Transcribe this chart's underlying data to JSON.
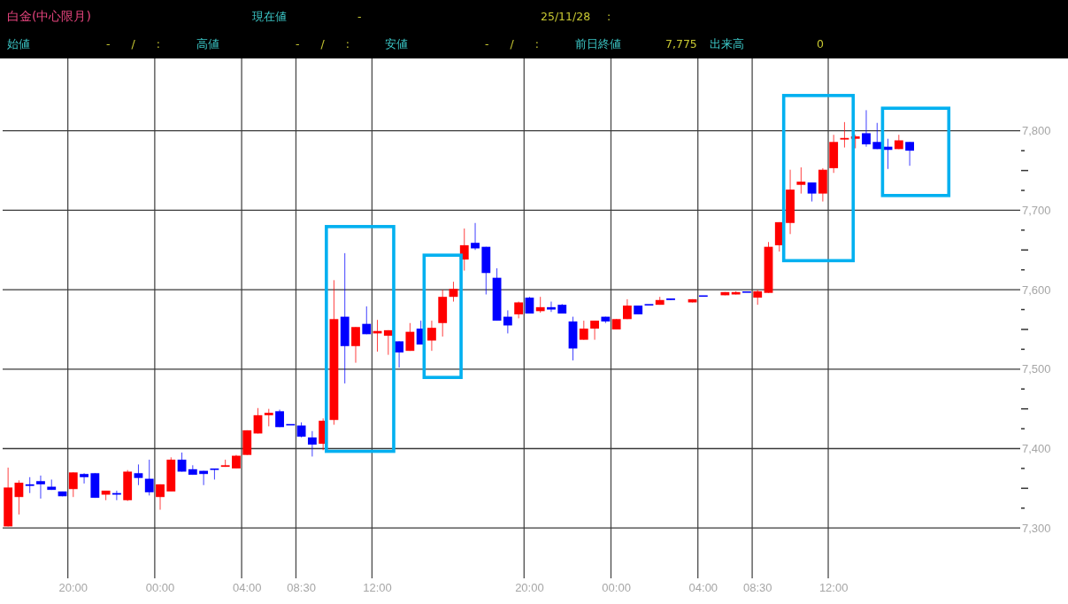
{
  "chart_data": {
    "type": "candlestick",
    "title": "白金(中心限月)",
    "annotations": [
      "現在値",
      "-",
      "25/11/28",
      ":",
      "始値",
      "- / :",
      "高値",
      "- / :",
      "安値",
      "- / :",
      "前日終値",
      "7,775",
      "出来高",
      "0"
    ],
    "categories": [
      null,
      null,
      null,
      null,
      null,
      null,
      "20:00",
      null,
      null,
      null,
      null,
      null,
      null,
      null,
      "00:00",
      null,
      null,
      null,
      null,
      null,
      null,
      null,
      "04:00",
      null,
      null,
      null,
      null,
      "08:30",
      null,
      null,
      null,
      null,
      null,
      null,
      "12:00",
      null,
      null,
      null,
      null,
      null,
      null,
      null,
      null,
      null,
      null,
      null,
      null,
      null,
      "20:00",
      null,
      null,
      null,
      null,
      null,
      null,
      null,
      "00:00",
      null,
      null,
      null,
      null,
      null,
      null,
      null,
      "04:00",
      null,
      null,
      null,
      null,
      "08:30",
      null,
      null,
      null,
      null,
      null,
      null,
      "12:00",
      null,
      null,
      null,
      null,
      null,
      null,
      null,
      null,
      null,
      null,
      null,
      null,
      null,
      null,
      null,
      null,
      null
    ],
    "ohlc": [
      [
        7302,
        7376,
        7302,
        7351
      ],
      [
        7339,
        7360,
        7317,
        7357
      ],
      [
        7355,
        7364,
        7344,
        7353
      ],
      [
        7359,
        7366,
        7337,
        7355
      ],
      [
        7352,
        7361,
        7348,
        7348
      ],
      [
        7346,
        7346,
        7340,
        7340
      ],
      [
        7349,
        7370,
        7339,
        7370
      ],
      [
        7368,
        7369,
        7356,
        7364
      ],
      [
        7369,
        7369,
        7338,
        7338
      ],
      [
        7342,
        7347,
        7335,
        7347
      ],
      [
        7344,
        7347,
        7335,
        7342
      ],
      [
        7335,
        7373,
        7334,
        7371
      ],
      [
        7369,
        7380,
        7354,
        7363
      ],
      [
        7362,
        7386,
        7341,
        7345
      ],
      [
        7339,
        7355,
        7323,
        7355
      ],
      [
        7346,
        7389,
        7346,
        7386
      ],
      [
        7386,
        7395,
        7371,
        7371
      ],
      [
        7374,
        7379,
        7367,
        7367
      ],
      [
        7372,
        7372,
        7354,
        7368
      ],
      [
        7374,
        7374,
        7361,
        7373
      ],
      [
        7377,
        7386,
        7377,
        7379
      ],
      [
        7375,
        7392,
        7375,
        7391
      ],
      [
        7392,
        7423,
        7392,
        7423
      ],
      [
        7419,
        7451,
        7419,
        7442
      ],
      [
        7442,
        7450,
        7428,
        7445
      ],
      [
        7447,
        7449,
        7427,
        7427
      ],
      [
        7430,
        7430,
        7430,
        7430
      ],
      [
        7429,
        7433,
        7414,
        7415
      ],
      [
        7414,
        7422,
        7390,
        7405
      ],
      [
        7406,
        7438,
        7398,
        7435
      ],
      [
        7436,
        7612,
        7430,
        7563
      ],
      [
        7566,
        7646,
        7482,
        7529
      ],
      [
        7529,
        7553,
        7508,
        7553
      ],
      [
        7557,
        7579,
        7544,
        7544
      ],
      [
        7545,
        7562,
        7522,
        7548
      ],
      [
        7542,
        7549,
        7518,
        7549
      ],
      [
        7535,
        7535,
        7502,
        7521
      ],
      [
        7523,
        7558,
        7523,
        7547
      ],
      [
        7551,
        7561,
        7531,
        7531
      ],
      [
        7536,
        7561,
        7523,
        7552
      ],
      [
        7558,
        7600,
        7541,
        7591
      ],
      [
        7591,
        7610,
        7585,
        7601
      ],
      [
        7638,
        7677,
        7624,
        7656
      ],
      [
        7659,
        7684,
        7650,
        7652
      ],
      [
        7654,
        7654,
        7594,
        7621
      ],
      [
        7615,
        7627,
        7561,
        7561
      ],
      [
        7566,
        7574,
        7545,
        7555
      ],
      [
        7569,
        7585,
        7564,
        7584
      ],
      [
        7590,
        7591,
        7570,
        7570
      ],
      [
        7573,
        7591,
        7571,
        7578
      ],
      [
        7578,
        7585,
        7572,
        7575
      ],
      [
        7581,
        7582,
        7570,
        7570
      ],
      [
        7560,
        7566,
        7511,
        7526
      ],
      [
        7537,
        7561,
        7537,
        7551
      ],
      [
        7551,
        7561,
        7537,
        7561
      ],
      [
        7566,
        7566,
        7558,
        7560
      ],
      [
        7550,
        7563,
        7550,
        7563
      ],
      [
        7563,
        7588,
        7563,
        7580
      ],
      [
        7580,
        7580,
        7569,
        7569
      ],
      [
        7581,
        7581,
        7581,
        7581
      ],
      [
        7581,
        7591,
        7581,
        7587
      ],
      [
        7589,
        7589,
        7587,
        7587
      ],
      null,
      [
        7584,
        7588,
        7584,
        7588
      ],
      [
        7592,
        7592,
        7592,
        7592
      ],
      null,
      [
        7593,
        7597,
        7593,
        7597
      ],
      [
        7594,
        7598,
        7594,
        7597
      ],
      [
        7597,
        7597,
        7597,
        7597
      ],
      [
        7590,
        7600,
        7581,
        7598
      ],
      [
        7596,
        7660,
        7596,
        7654
      ],
      [
        7656,
        7685,
        7648,
        7685
      ],
      [
        7684,
        7751,
        7670,
        7726
      ],
      [
        7732,
        7754,
        7721,
        7736
      ],
      [
        7735,
        7735,
        7711,
        7721
      ],
      [
        7721,
        7753,
        7711,
        7751
      ],
      [
        7753,
        7795,
        7747,
        7786
      ],
      [
        7789,
        7811,
        7779,
        7791
      ],
      [
        7790,
        7795,
        7778,
        7793
      ],
      [
        7797,
        7826,
        7780,
        7783
      ],
      [
        7786,
        7810,
        7777,
        7777
      ],
      [
        7780,
        7790,
        7752,
        7776
      ],
      [
        7777,
        7795,
        7777,
        7788
      ],
      [
        7786,
        7786,
        7756,
        7775
      ],
      null,
      null,
      null,
      null,
      null,
      null,
      null,
      null,
      null,
      null
    ],
    "colors": [
      "#ff0000",
      "#ff0000",
      "#0000ff",
      "#0000ff",
      "#0000ff",
      "#0000ff",
      "#ff0000",
      "#0000ff",
      "#0000ff",
      "#ff0000",
      "#0000ff",
      "#ff0000",
      "#0000ff",
      "#0000ff",
      "#ff0000",
      "#ff0000",
      "#0000ff",
      "#0000ff",
      "#0000ff",
      "#0000ff",
      "#ff0000",
      "#ff0000",
      "#ff0000",
      "#ff0000",
      "#ff0000",
      "#0000ff",
      "#0000ff",
      "#0000ff",
      "#0000ff",
      "#ff0000",
      "#ff0000",
      "#0000ff",
      "#ff0000",
      "#0000ff",
      "#ff0000",
      "#ff0000",
      "#0000ff",
      "#ff0000",
      "#0000ff",
      "#ff0000",
      "#ff0000",
      "#ff0000",
      "#ff0000",
      "#0000ff",
      "#0000ff",
      "#0000ff",
      "#0000ff",
      "#ff0000",
      "#0000ff",
      "#ff0000",
      "#0000ff",
      "#0000ff",
      "#0000ff",
      "#ff0000",
      "#ff0000",
      "#0000ff",
      "#ff0000",
      "#ff0000",
      "#0000ff",
      "#0000ff",
      "#ff0000",
      "#0000ff",
      null,
      "#ff0000",
      "#0000ff",
      null,
      "#ff0000",
      "#ff0000",
      "#0000ff",
      "#ff0000",
      "#ff0000",
      "#ff0000",
      "#ff0000",
      "#ff0000",
      "#0000ff",
      "#ff0000",
      "#ff0000",
      "#ff0000",
      "#ff0000",
      "#0000ff",
      "#0000ff",
      "#0000ff",
      "#ff0000",
      "#0000ff",
      null,
      null,
      null,
      null,
      null,
      null,
      null,
      null,
      null,
      null
    ],
    "ylim": [
      7240,
      7890
    ],
    "yticks": [
      {
        "value": 7300,
        "label": "7,300"
      },
      {
        "value": 7325,
        "label": null
      },
      {
        "value": 7350,
        "label": null
      },
      {
        "value": 7375,
        "label": null
      },
      {
        "value": 7400,
        "label": "7,400"
      },
      {
        "value": 7425,
        "label": null
      },
      {
        "value": 7450,
        "label": null
      },
      {
        "value": 7475,
        "label": null
      },
      {
        "value": 7500,
        "label": "7,500"
      },
      {
        "value": 7525,
        "label": null
      },
      {
        "value": 7550,
        "label": null
      },
      {
        "value": 7575,
        "label": null
      },
      {
        "value": 7600,
        "label": "7,600"
      },
      {
        "value": 7625,
        "label": null
      },
      {
        "value": 7650,
        "label": null
      },
      {
        "value": 7675,
        "label": null
      },
      {
        "value": 7700,
        "label": "7,700"
      },
      {
        "value": 7725,
        "label": null
      },
      {
        "value": 7750,
        "label": null
      },
      {
        "value": 7775,
        "label": null
      },
      {
        "value": 7800,
        "label": "7,800"
      }
    ],
    "grid": true
  }
}
